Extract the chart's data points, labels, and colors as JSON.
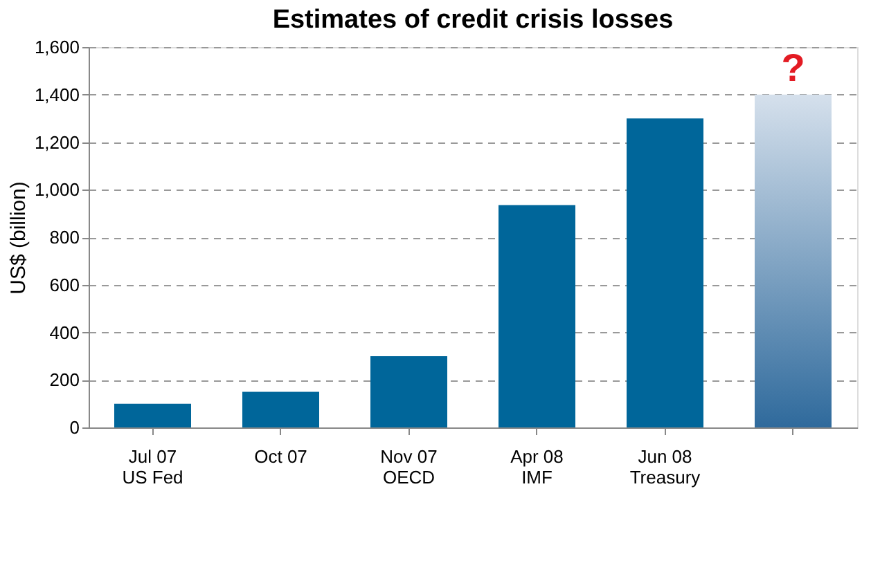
{
  "chart_data": {
    "type": "bar",
    "title": "Estimates of credit crisis losses",
    "ylabel": "US$ (billion)",
    "categories": [
      "Jul 07\nUS Fed",
      "Oct 07",
      "Nov 07\nOECD",
      "Apr 08\nIMF",
      "Jun 08\nTreasury",
      null
    ],
    "values": [
      100,
      150,
      300,
      935,
      1300,
      1400
    ],
    "colors": [
      "#00669a",
      "#00669a",
      "#00669a",
      "#00669a",
      "#00669a",
      "#2f6a9c"
    ],
    "annotations": [
      "?"
    ],
    "ylim": [
      0,
      1600
    ],
    "yticks": [
      0,
      200,
      400,
      600,
      800,
      {
        "value": 1000,
        "label": "1,000"
      },
      {
        "value": 1200,
        "label": "1,200"
      },
      {
        "value": 1400,
        "label": "1,400"
      },
      {
        "value": 1600,
        "label": "1,600"
      }
    ],
    "grid": "y"
  }
}
